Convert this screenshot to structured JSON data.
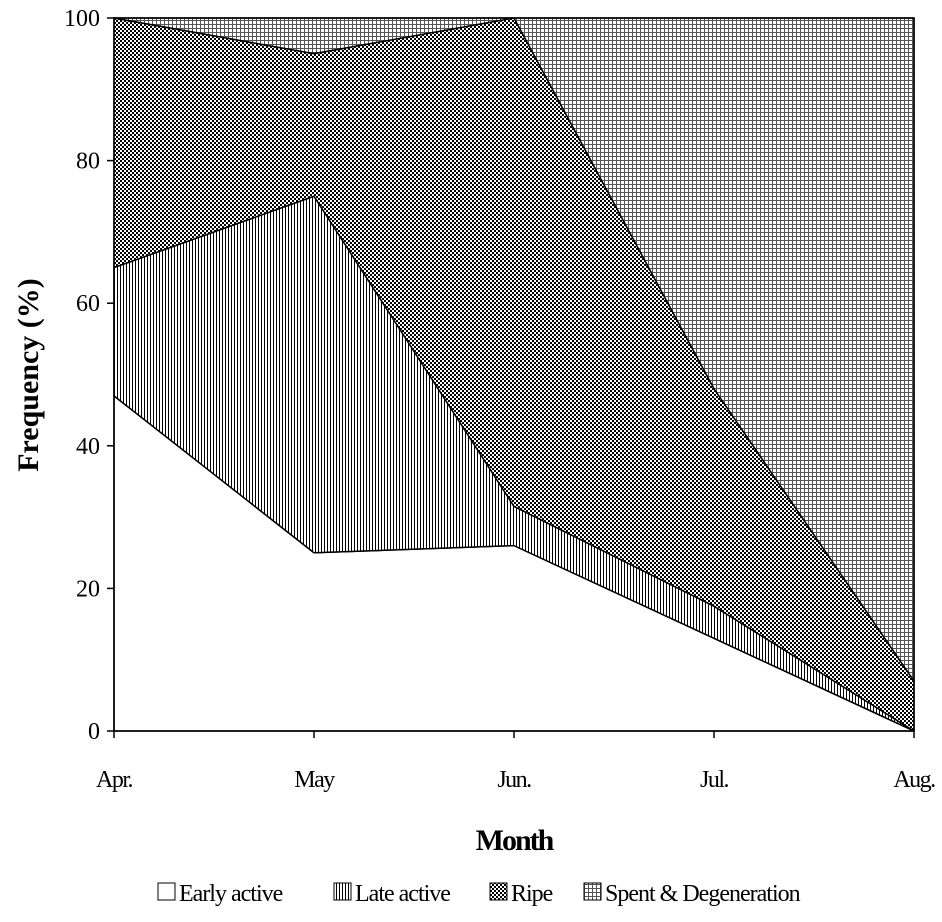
{
  "chart_data": {
    "type": "area",
    "stacked": true,
    "title": "",
    "xlabel": "Month",
    "ylabel": "Frequency (%)",
    "categories": [
      "Apr.",
      "May",
      "Jun.",
      "Jul.",
      "Aug."
    ],
    "ylim": [
      0,
      100
    ],
    "yticks": [
      0,
      20,
      40,
      60,
      80,
      100
    ],
    "grid": false,
    "legend_position": "bottom",
    "series": [
      {
        "name": "Early active",
        "values": [
          47,
          25,
          26,
          13,
          0
        ],
        "pattern": "blank"
      },
      {
        "name": "Late active",
        "values": [
          18,
          50,
          5.5,
          4.5,
          0
        ],
        "pattern": "vertical-lines"
      },
      {
        "name": "Ripe",
        "values": [
          35,
          20,
          68.5,
          30.5,
          7
        ],
        "pattern": "dots"
      },
      {
        "name": "Spent & Degeneration",
        "values": [
          0,
          5,
          0,
          52,
          93
        ],
        "pattern": "grid"
      }
    ]
  }
}
